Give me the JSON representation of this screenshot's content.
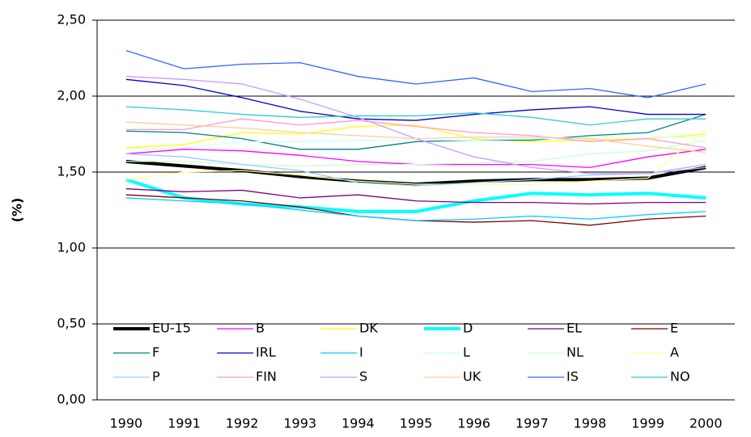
{
  "chart_data": {
    "type": "line",
    "y_label": "(%)",
    "categories": [
      "1990",
      "1991",
      "1992",
      "1993",
      "1994",
      "1995",
      "1996",
      "1997",
      "1998",
      "1999",
      "2000"
    ],
    "ylim": [
      0,
      2.5
    ],
    "yticks": [
      {
        "value": 0,
        "label": "0,00"
      },
      {
        "value": 0.5,
        "label": "0,50"
      },
      {
        "value": 1,
        "label": "1,00"
      },
      {
        "value": 1.5,
        "label": "1,50"
      },
      {
        "value": 2,
        "label": "2,00"
      },
      {
        "value": 2.5,
        "label": "2,50"
      }
    ],
    "grid": true,
    "legend": "lower-inside",
    "series": [
      {
        "name": "EU-15",
        "color": "#000000",
        "linewidth": 4,
        "values": [
          1.57,
          1.54,
          1.51,
          1.47,
          1.44,
          1.42,
          1.44,
          1.45,
          1.45,
          1.46,
          1.53
        ]
      },
      {
        "name": "B",
        "color": "#ff00ff",
        "linewidth": 1.3,
        "values": [
          1.62,
          1.65,
          1.64,
          1.61,
          1.57,
          1.55,
          1.55,
          1.55,
          1.53,
          1.6,
          1.65
        ]
      },
      {
        "name": "DK",
        "color": "#ffff00",
        "linewidth": 1.3,
        "values": [
          1.66,
          1.68,
          1.76,
          1.75,
          1.8,
          1.81,
          1.72,
          1.7,
          1.71,
          1.72,
          1.75
        ]
      },
      {
        "name": "D",
        "color": "#00ffff",
        "linewidth": 4,
        "values": [
          1.45,
          1.33,
          1.29,
          1.27,
          1.24,
          1.24,
          1.31,
          1.36,
          1.35,
          1.36,
          1.33
        ]
      },
      {
        "name": "EL",
        "color": "#800080",
        "linewidth": 1.3,
        "values": [
          1.39,
          1.37,
          1.38,
          1.33,
          1.35,
          1.31,
          1.3,
          1.3,
          1.29,
          1.3,
          1.3
        ]
      },
      {
        "name": "E",
        "color": "#800000",
        "linewidth": 1.3,
        "values": [
          1.35,
          1.33,
          1.31,
          1.27,
          1.21,
          1.18,
          1.17,
          1.18,
          1.15,
          1.19,
          1.21
        ]
      },
      {
        "name": "F",
        "color": "#008080",
        "linewidth": 1.3,
        "values": [
          1.77,
          1.76,
          1.72,
          1.65,
          1.65,
          1.7,
          1.71,
          1.71,
          1.74,
          1.76,
          1.88
        ]
      },
      {
        "name": "IRL",
        "color": "#0000cc",
        "linewidth": 1.3,
        "values": [
          2.11,
          2.07,
          1.99,
          1.9,
          1.85,
          1.84,
          1.88,
          1.91,
          1.93,
          1.88,
          1.88
        ]
      },
      {
        "name": "I",
        "color": "#00ccff",
        "linewidth": 1.3,
        "values": [
          1.33,
          1.31,
          1.29,
          1.25,
          1.21,
          1.18,
          1.19,
          1.21,
          1.19,
          1.22,
          1.24
        ]
      },
      {
        "name": "L",
        "color": "#ccffff",
        "linewidth": 1.3,
        "values": [
          1.65,
          1.66,
          1.7,
          1.7,
          1.71,
          1.71,
          1.71,
          1.72,
          1.72,
          1.73,
          1.73
        ]
      },
      {
        "name": "NL",
        "color": "#ccffcc",
        "linewidth": 1.3,
        "values": [
          1.57,
          1.57,
          1.55,
          1.54,
          1.55,
          1.55,
          1.56,
          1.57,
          1.62,
          1.64,
          1.71
        ]
      },
      {
        "name": "A",
        "color": "#ffff99",
        "linewidth": 1.3,
        "values": [
          1.45,
          1.5,
          1.51,
          1.48,
          1.44,
          1.42,
          1.42,
          1.42,
          1.44,
          1.46,
          1.78
        ]
      },
      {
        "name": "P",
        "color": "#99ccff",
        "linewidth": 1.3,
        "values": [
          1.62,
          1.6,
          1.55,
          1.51,
          1.43,
          1.41,
          1.43,
          1.45,
          1.48,
          1.49,
          1.53
        ]
      },
      {
        "name": "FIN",
        "color": "#ff99cc",
        "linewidth": 1.3,
        "values": [
          1.78,
          1.78,
          1.85,
          1.81,
          1.84,
          1.8,
          1.76,
          1.74,
          1.7,
          1.72,
          1.66
        ]
      },
      {
        "name": "S",
        "color": "#cc99ff",
        "linewidth": 1.3,
        "values": [
          2.13,
          2.11,
          2.08,
          1.98,
          1.86,
          1.72,
          1.6,
          1.53,
          1.49,
          1.49,
          1.55
        ]
      },
      {
        "name": "UK",
        "color": "#ffcc99",
        "linewidth": 1.3,
        "values": [
          1.83,
          1.81,
          1.79,
          1.76,
          1.74,
          1.72,
          1.73,
          1.73,
          1.72,
          1.67,
          1.63
        ]
      },
      {
        "name": "IS",
        "color": "#3366ff",
        "linewidth": 1.3,
        "values": [
          2.3,
          2.18,
          2.21,
          2.22,
          2.13,
          2.08,
          2.12,
          2.03,
          2.05,
          1.99,
          2.08
        ]
      },
      {
        "name": "NO",
        "color": "#33cccc",
        "linewidth": 1.3,
        "values": [
          1.93,
          1.91,
          1.88,
          1.86,
          1.87,
          1.87,
          1.89,
          1.86,
          1.81,
          1.85,
          1.85
        ]
      }
    ]
  }
}
